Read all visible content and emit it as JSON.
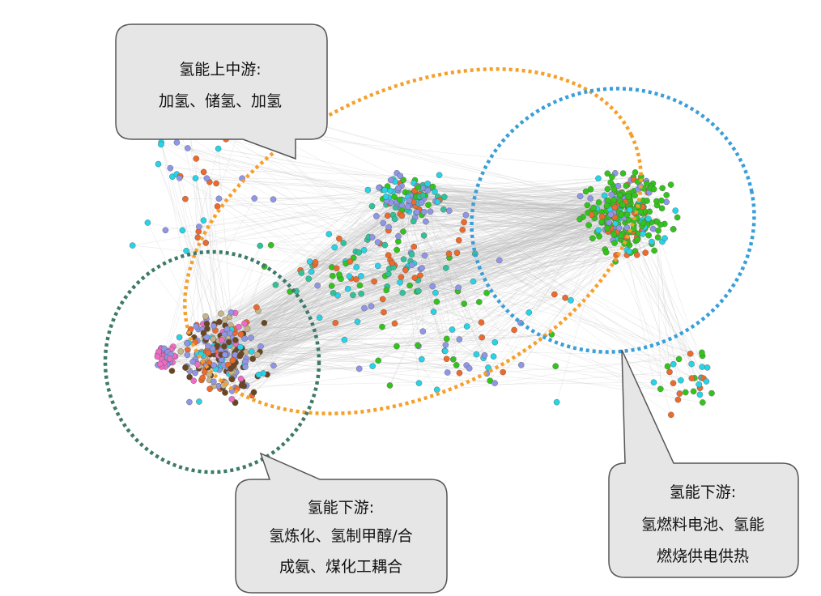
{
  "colors": {
    "edge": "#b9b9b9",
    "orange_dotted": "#f5a02a",
    "blue_dotted": "#3a9fd8",
    "teal_dotted": "#3d7a6a",
    "bubble_fill": "#e6e6e6",
    "bubble_stroke": "#555555",
    "node_palette": {
      "periwinkle": "#8f96e6",
      "green": "#33c41c",
      "orange": "#ec6a2c",
      "cyan": "#27d3e6",
      "pink": "#ee6cc4",
      "brown": "#6b4522",
      "teal": "#2fc39a",
      "tan": "#c7b38a"
    }
  },
  "callouts": [
    {
      "id": "upstream",
      "lines": [
        "氢能上中游:",
        "加氢、储氢、加氢"
      ]
    },
    {
      "id": "downstream-left",
      "lines": [
        "氢能下游:",
        "氢炼化、氢制甲醇/合",
        "成氨、煤化工耦合"
      ]
    },
    {
      "id": "downstream-right",
      "lines": [
        "氢能下游:",
        "氢燃料电池、氢能",
        "燃烧供电供热"
      ]
    }
  ]
}
